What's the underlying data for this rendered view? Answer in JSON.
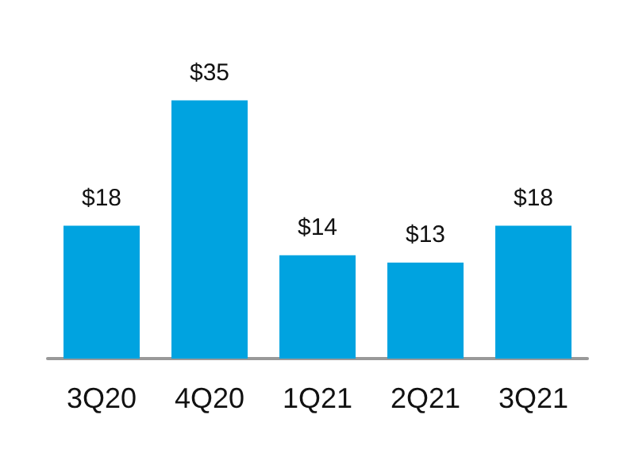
{
  "chart_data": {
    "type": "bar",
    "categories": [
      "3Q20",
      "4Q20",
      "1Q21",
      "2Q21",
      "3Q21"
    ],
    "values": [
      18,
      35,
      14,
      13,
      18
    ],
    "value_labels": [
      "$18",
      "$35",
      "$14",
      "$13",
      "$18"
    ],
    "color": "#00a3e0"
  }
}
